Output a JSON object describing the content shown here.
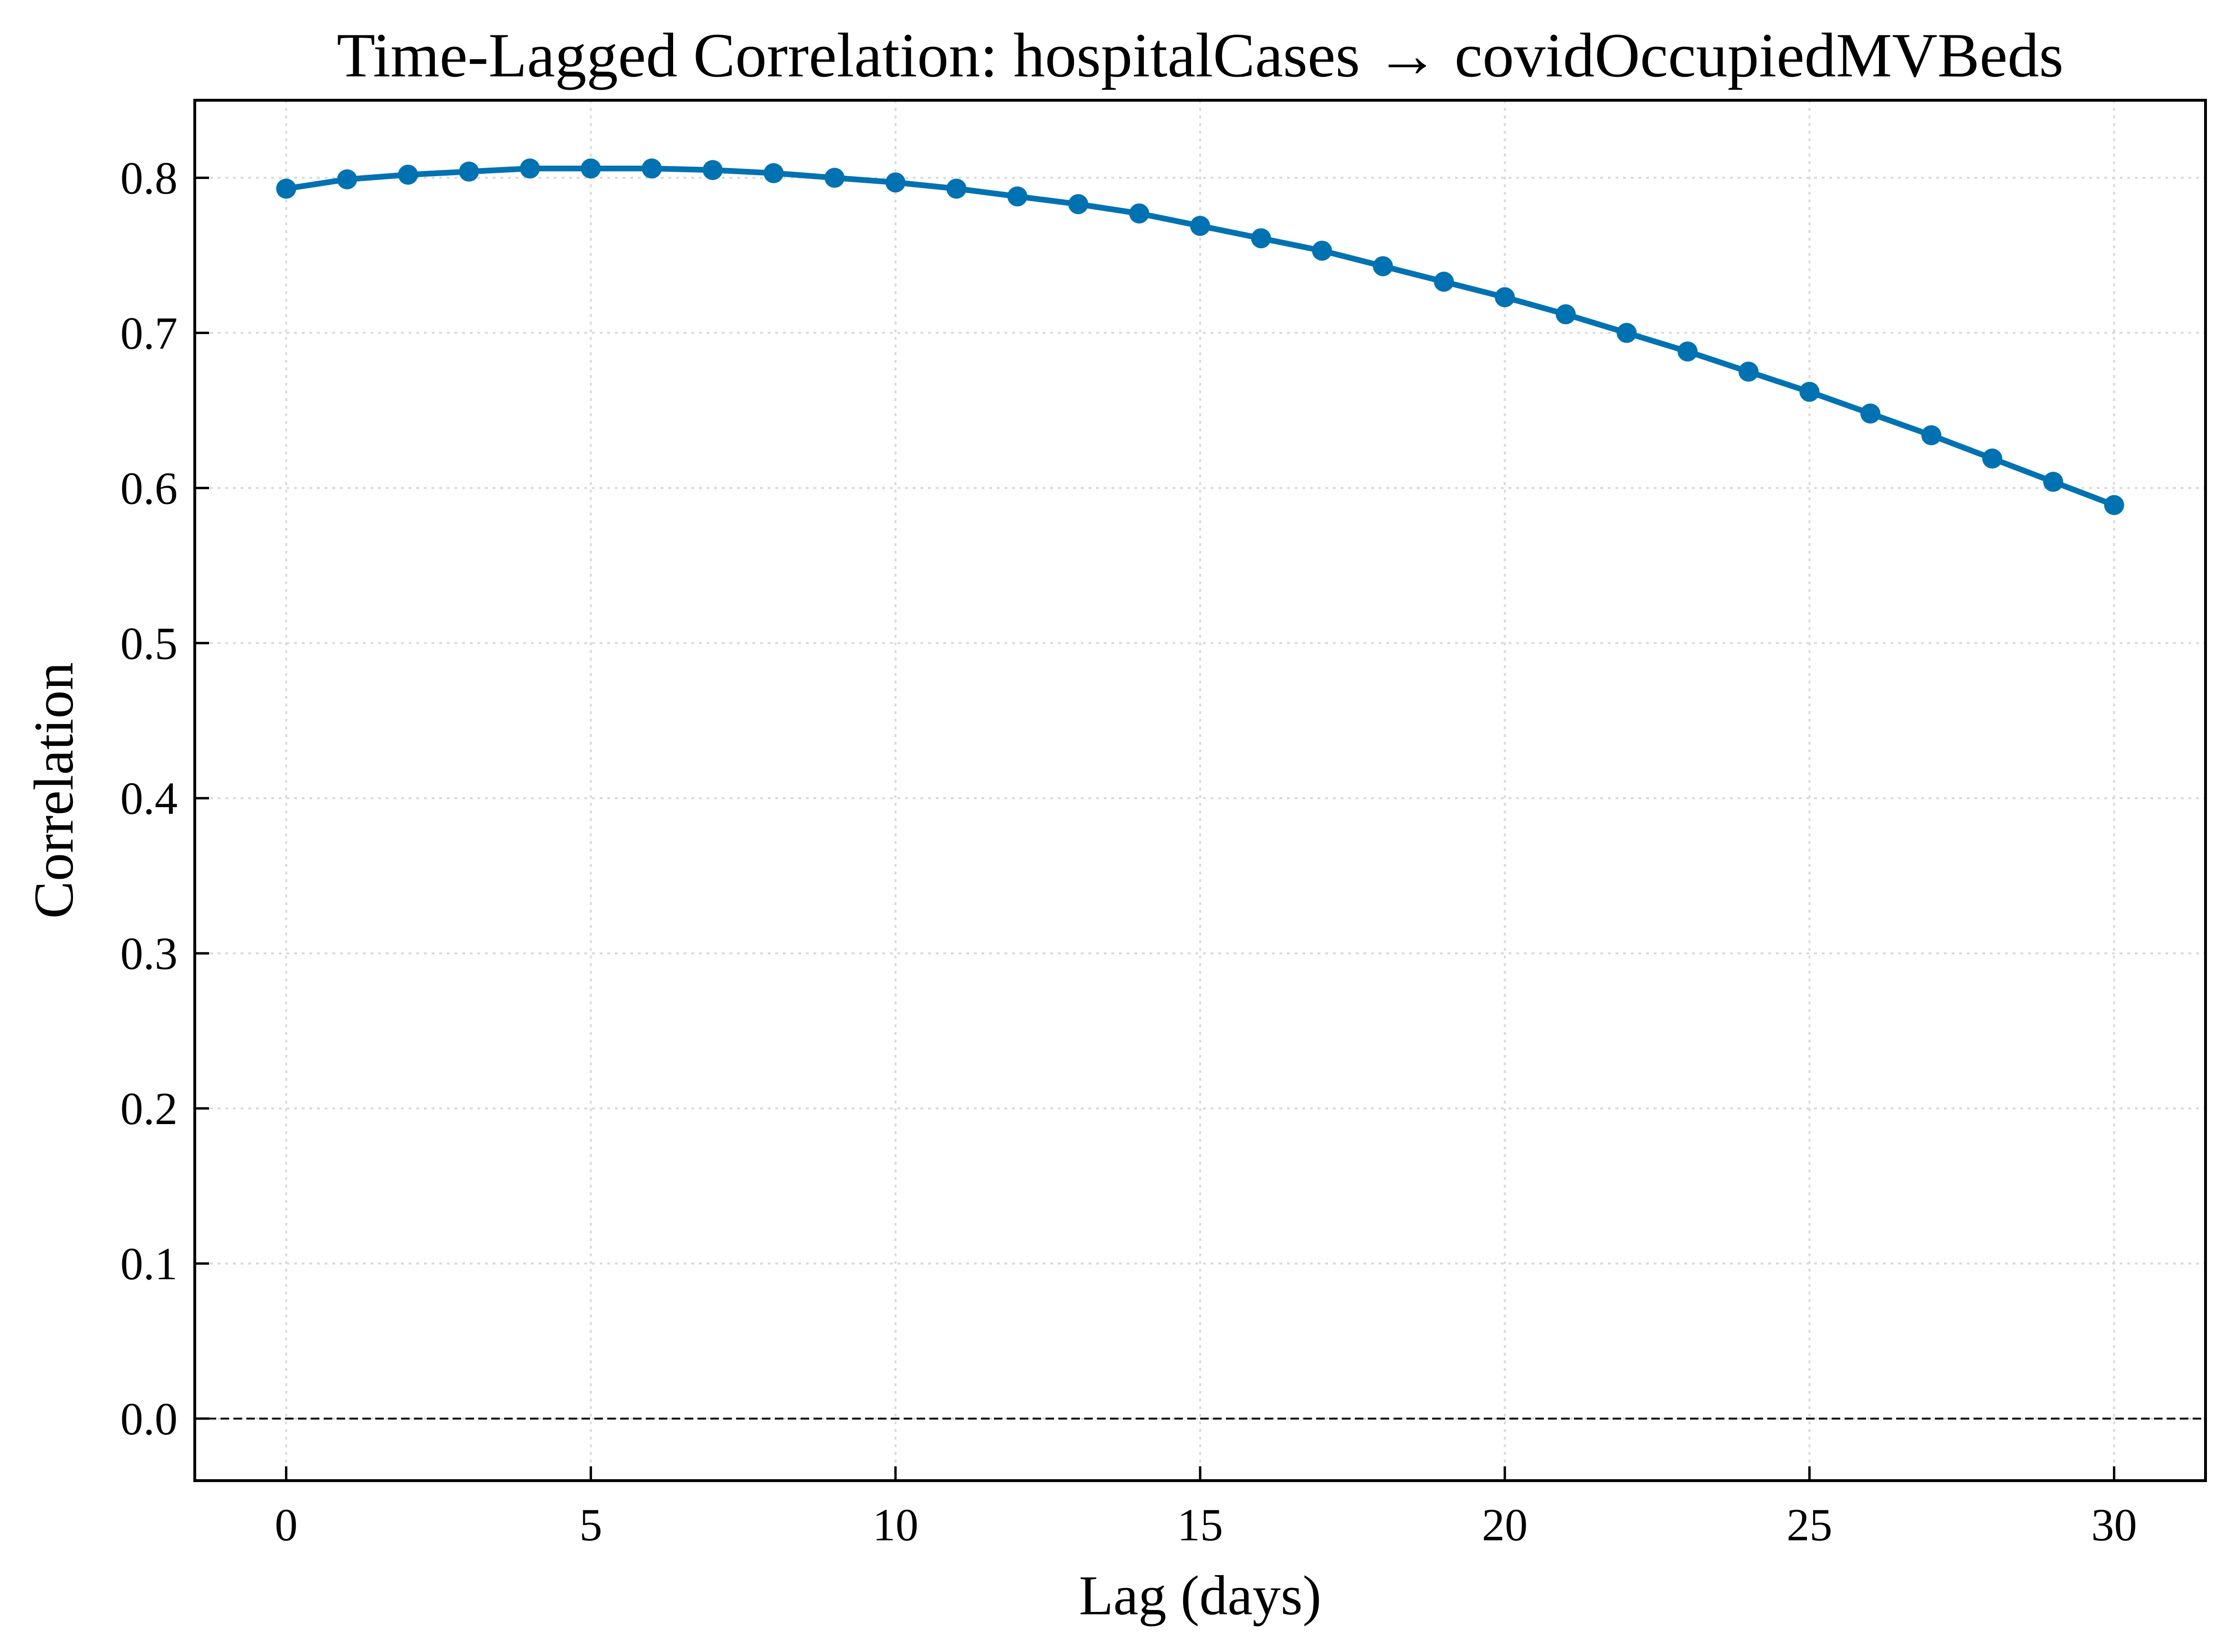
{
  "chart_data": {
    "type": "line",
    "title": "Time-Lagged Correlation: hospitalCases → covidOccupiedMVBeds",
    "xlabel": "Lag (days)",
    "ylabel": "Correlation",
    "xlim": [
      -1.5,
      31.5
    ],
    "ylim": [
      -0.04,
      0.85
    ],
    "xticks": [
      0,
      5,
      10,
      15,
      20,
      25,
      30
    ],
    "xtick_labels": [
      "0",
      "5",
      "10",
      "15",
      "20",
      "25",
      "30"
    ],
    "yticks": [
      0.0,
      0.1,
      0.2,
      0.3,
      0.4,
      0.5,
      0.6,
      0.7,
      0.8
    ],
    "ytick_labels": [
      "0.0",
      "0.1",
      "0.2",
      "0.3",
      "0.4",
      "0.5",
      "0.6",
      "0.7",
      "0.8"
    ],
    "grid": true,
    "reference_line": 0.0,
    "series": [
      {
        "color": "#0072b2",
        "marker": "circle",
        "x": [
          0,
          1,
          2,
          3,
          4,
          5,
          6,
          7,
          8,
          9,
          10,
          11,
          12,
          13,
          14,
          15,
          16,
          17,
          18,
          19,
          20,
          21,
          22,
          23,
          24,
          25,
          26,
          27,
          28,
          29,
          30
        ],
        "values": [
          0.793,
          0.799,
          0.802,
          0.804,
          0.806,
          0.806,
          0.806,
          0.805,
          0.803,
          0.8,
          0.797,
          0.793,
          0.788,
          0.783,
          0.777,
          0.769,
          0.761,
          0.753,
          0.743,
          0.733,
          0.723,
          0.712,
          0.7,
          0.688,
          0.675,
          0.662,
          0.648,
          0.634,
          0.619,
          0.604,
          0.589
        ]
      }
    ]
  },
  "style": {
    "line_color": "#0072b2",
    "grid_color": "#d9d9d9",
    "axis_color": "#000000"
  }
}
